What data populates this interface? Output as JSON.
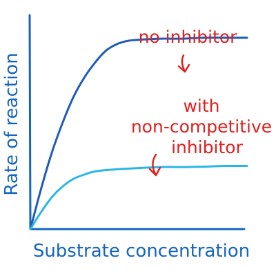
{
  "chart_data": {
    "type": "line",
    "xlabel": "Substrate concentration",
    "ylabel": "Rate of reaction",
    "xlim": [
      0,
      10
    ],
    "ylim": [
      0,
      10
    ],
    "axis_color": "#1565c0",
    "series": [
      {
        "name": "no inhibitor",
        "color": "#1e5bb8",
        "x": [
          0,
          0.5,
          1.0,
          1.5,
          2.0,
          2.5,
          3.0,
          3.5,
          4.0,
          4.5,
          5.0,
          6.0,
          7.0,
          8.0,
          9.0,
          10.0
        ],
        "y": [
          0,
          1.9,
          3.6,
          5.0,
          6.2,
          7.1,
          7.8,
          8.35,
          8.65,
          8.8,
          8.85,
          8.9,
          8.9,
          8.95,
          8.95,
          8.95
        ]
      },
      {
        "name": "with non-competitive inhibitor",
        "color": "#29b6e6",
        "x": [
          0,
          0.5,
          1.0,
          1.5,
          2.0,
          2.5,
          3.0,
          4.0,
          5.0,
          6.0,
          7.0,
          8.0,
          9.0,
          10.0
        ],
        "y": [
          0,
          0.8,
          1.5,
          2.0,
          2.35,
          2.55,
          2.7,
          2.8,
          2.85,
          2.9,
          2.9,
          2.92,
          2.95,
          2.95
        ]
      }
    ],
    "annotations": [
      {
        "text": "no inhibitor",
        "color": "#e02020",
        "target_series": 0
      },
      {
        "text": "with\nnon-competitive\ninhibitor",
        "color": "#e02020",
        "target_series": 1
      }
    ]
  }
}
